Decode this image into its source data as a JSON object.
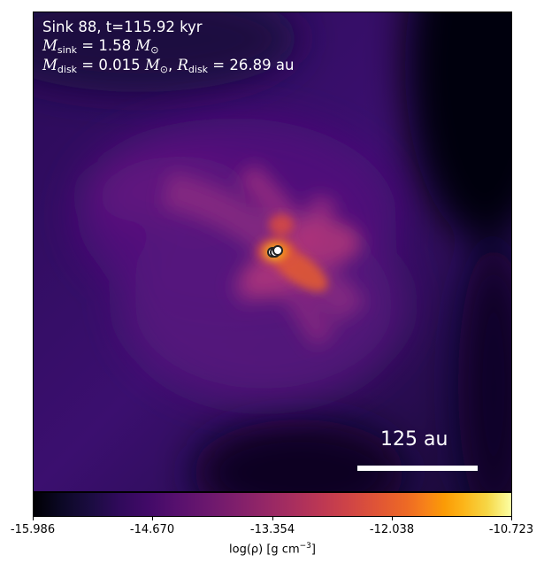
{
  "header": {
    "line1": "Sink 88, t=115.92 kyr",
    "msink_symbol": "M",
    "msink_sub": "sink",
    "msink_value": " = 1.58 ",
    "msink_unit": "M",
    "msink_unit_sub": "⊙",
    "mdisk_symbol": "M",
    "mdisk_sub": "disk",
    "mdisk_value": " = 0.015 ",
    "mdisk_unit": "M",
    "mdisk_unit_sub": "⊙",
    "mdisk_sep": ", ",
    "rdisk_symbol": "R",
    "rdisk_sub": "disk",
    "rdisk_value": " = 26.89 au"
  },
  "scale_bar": {
    "label": "125 au"
  },
  "colorbar": {
    "ticks": [
      "-15.986",
      "-14.670",
      "-13.354",
      "-12.038",
      "-10.723"
    ],
    "label_prefix": "log(ρ) [g cm",
    "label_exp": "−3",
    "label_suffix": "]",
    "colormap": "inferno"
  },
  "sinks": {
    "count": 3,
    "marker_fill": "#ffffff",
    "marker_stroke": "#222222"
  }
}
